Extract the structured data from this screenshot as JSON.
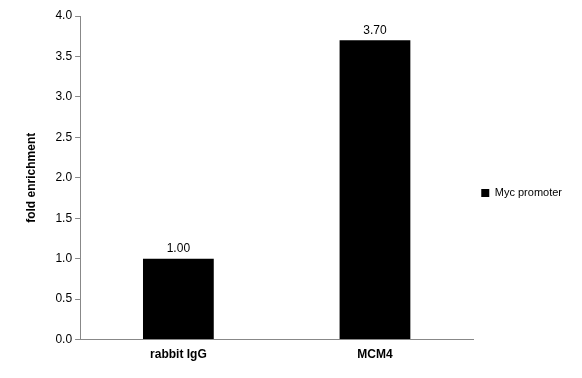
{
  "chart_data": {
    "type": "bar",
    "y_label": "fold enrichment",
    "categories": [
      "rabbit IgG",
      "MCM4"
    ],
    "series": [
      {
        "name": "Myc promoter",
        "color": "#000000",
        "values": [
          1.0,
          3.7
        ],
        "value_labels": [
          "1.00",
          "3.70"
        ]
      }
    ],
    "ylim": [
      0,
      4
    ],
    "yticks": [
      {
        "value": 0,
        "label": "0.0"
      },
      {
        "value": 0.5,
        "label": "0.5"
      },
      {
        "value": 1,
        "label": "1.0"
      },
      {
        "value": 1.5,
        "label": "1.5"
      },
      {
        "value": 2,
        "label": "2.0"
      },
      {
        "value": 2.5,
        "label": "2.5"
      },
      {
        "value": 3,
        "label": "3.0"
      },
      {
        "value": 3.5,
        "label": "3.5"
      },
      {
        "value": 4,
        "label": "4.0"
      }
    ],
    "grid": false,
    "legend": "right",
    "data_labels": true
  }
}
